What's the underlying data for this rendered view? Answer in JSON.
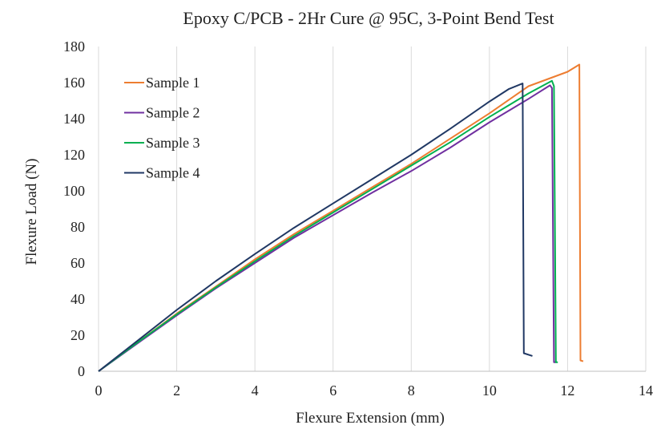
{
  "chart_data": {
    "type": "line",
    "title": "Epoxy C/PCB - 2Hr Cure @ 95C, 3-Point Bend Test",
    "xlabel": "Flexure Extension (mm)",
    "ylabel": "Flexure Load (N)",
    "xlim": [
      0,
      14
    ],
    "ylim": [
      0,
      180
    ],
    "xticks": [
      "0",
      "2",
      "4",
      "6",
      "8",
      "10",
      "12",
      "14"
    ],
    "yticks": [
      "0",
      "20",
      "40",
      "60",
      "80",
      "100",
      "120",
      "140",
      "160",
      "180"
    ],
    "grid": "vertical",
    "legend": "top-left",
    "series": [
      {
        "name": "Sample 1",
        "color": "#ed7d31",
        "points": [
          [
            0,
            0
          ],
          [
            1,
            16
          ],
          [
            2,
            32
          ],
          [
            3,
            47
          ],
          [
            4,
            62
          ],
          [
            5,
            76
          ],
          [
            6,
            89
          ],
          [
            7,
            102
          ],
          [
            8,
            115
          ],
          [
            9,
            129
          ],
          [
            10,
            143
          ],
          [
            11,
            158
          ],
          [
            12,
            166
          ],
          [
            12.3,
            170
          ],
          [
            12.33,
            6
          ],
          [
            12.4,
            5.5
          ]
        ]
      },
      {
        "name": "Sample 2",
        "color": "#7030a0",
        "points": [
          [
            0,
            0
          ],
          [
            1,
            15.5
          ],
          [
            2,
            31
          ],
          [
            3,
            46
          ],
          [
            4,
            60
          ],
          [
            5,
            74
          ],
          [
            6,
            86.5
          ],
          [
            7,
            99
          ],
          [
            8,
            111
          ],
          [
            9,
            124
          ],
          [
            10,
            138
          ],
          [
            11,
            151
          ],
          [
            11.55,
            158.5
          ],
          [
            11.6,
            157
          ],
          [
            11.65,
            5
          ],
          [
            11.7,
            5
          ]
        ]
      },
      {
        "name": "Sample 3",
        "color": "#00b050",
        "points": [
          [
            0,
            0
          ],
          [
            1,
            16
          ],
          [
            2,
            31.5
          ],
          [
            3,
            46.5
          ],
          [
            4,
            61
          ],
          [
            5,
            75
          ],
          [
            6,
            88
          ],
          [
            7,
            101
          ],
          [
            8,
            114
          ],
          [
            9,
            127
          ],
          [
            10,
            141
          ],
          [
            11,
            154
          ],
          [
            11.6,
            161
          ],
          [
            11.65,
            158
          ],
          [
            11.7,
            5
          ],
          [
            11.75,
            5
          ]
        ]
      },
      {
        "name": "Sample 4",
        "color": "#203864",
        "points": [
          [
            0,
            0
          ],
          [
            1,
            17
          ],
          [
            2,
            34
          ],
          [
            3,
            50
          ],
          [
            4,
            65
          ],
          [
            5,
            79.5
          ],
          [
            6,
            93
          ],
          [
            7,
            106.5
          ],
          [
            8,
            120
          ],
          [
            9,
            134.5
          ],
          [
            10,
            149.5
          ],
          [
            10.5,
            156.5
          ],
          [
            10.85,
            159.5
          ],
          [
            10.88,
            10
          ],
          [
            11.1,
            8.5
          ]
        ]
      }
    ]
  }
}
